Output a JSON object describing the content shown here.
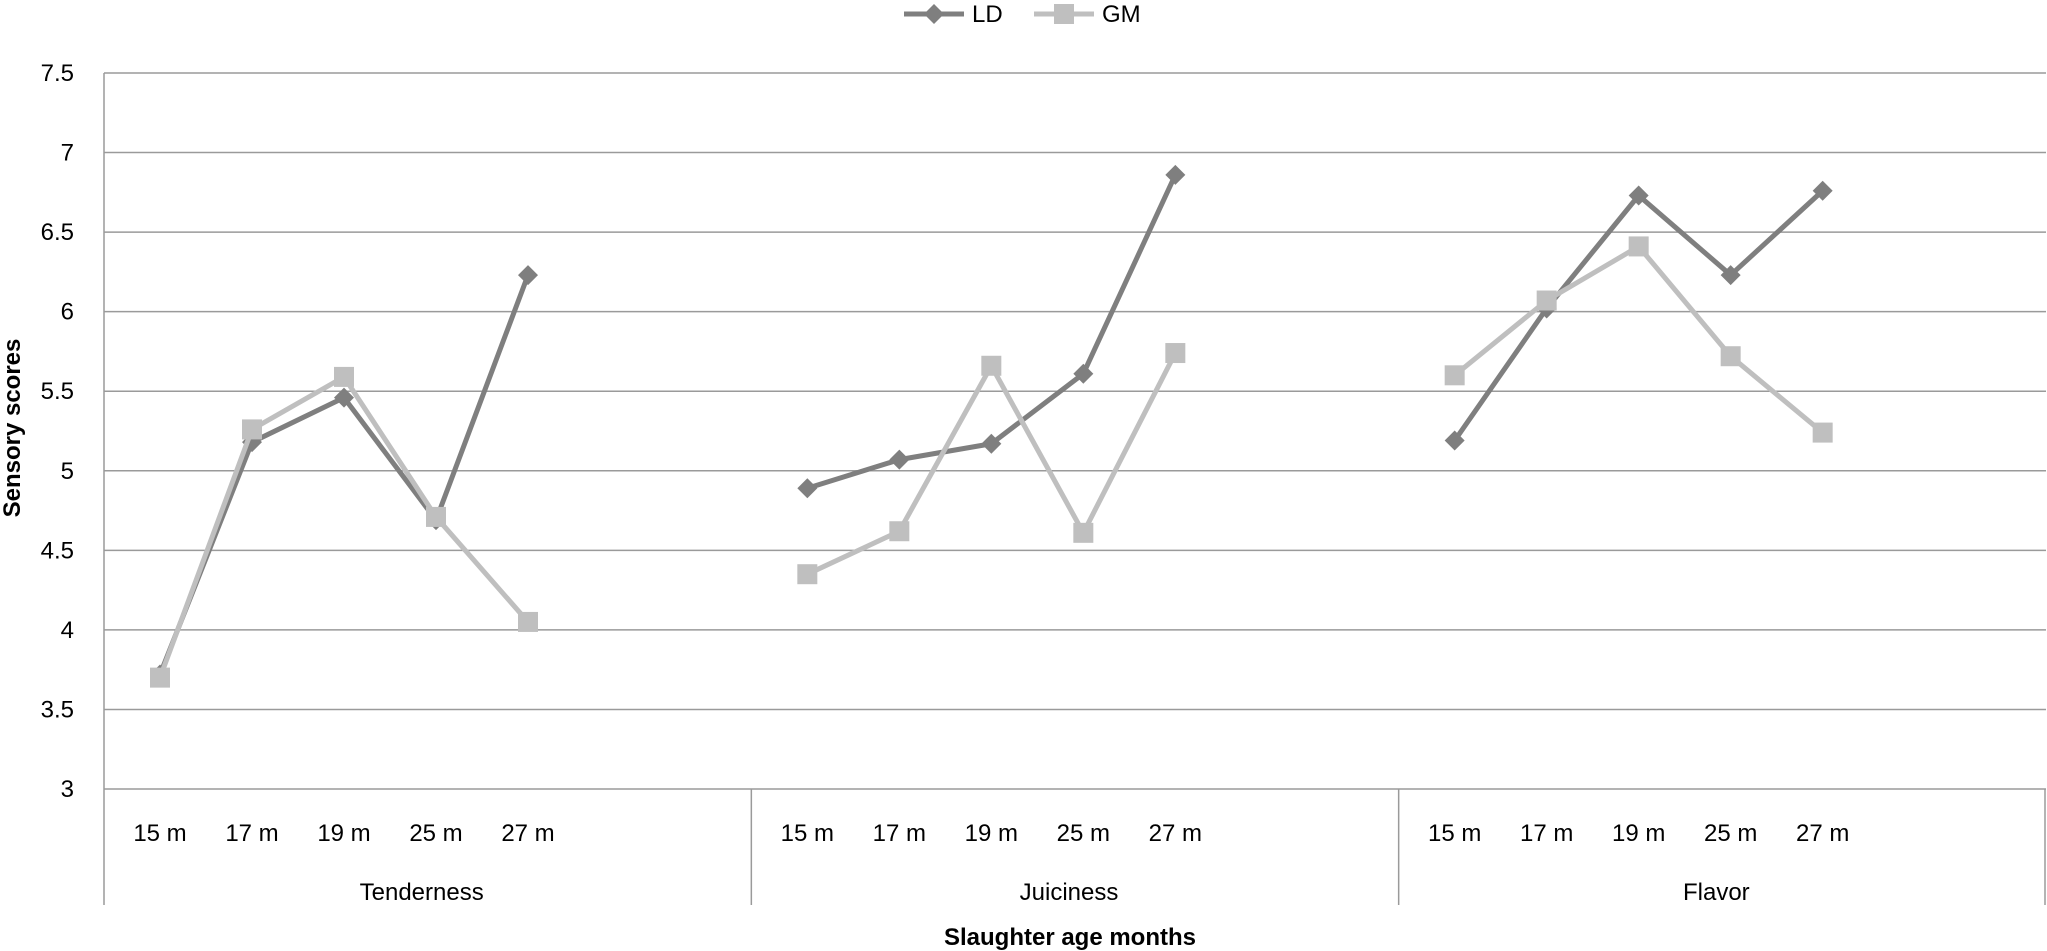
{
  "chart_data": {
    "type": "line",
    "xlabel": "Slaughter age months",
    "ylabel": "Sensory scores",
    "ylim": [
      3,
      7.5
    ],
    "yticks": [
      "3",
      "3.5",
      "4",
      "4.5",
      "5",
      "5.5",
      "6",
      "6.5",
      "7",
      "7.5"
    ],
    "grid": true,
    "legend_position": "top-center",
    "groups": [
      {
        "name": "Tenderness",
        "categories": [
          "15 m",
          "17 m",
          "19 m",
          "25 m",
          "27 m"
        ]
      },
      {
        "name": "Juiciness",
        "categories": [
          "15 m",
          "17 m",
          "19 m",
          "25 m",
          "27 m"
        ]
      },
      {
        "name": "Flavor",
        "categories": [
          "15 m",
          "17 m",
          "19 m",
          "25 m",
          "27 m"
        ]
      }
    ],
    "series": [
      {
        "name": "LD",
        "color": "#7f7f7f",
        "marker": "diamond",
        "values": [
          [
            3.72,
            5.18,
            5.46,
            4.69,
            6.23
          ],
          [
            4.89,
            5.07,
            5.17,
            5.61,
            6.86
          ],
          [
            5.19,
            6.02,
            6.73,
            6.23,
            6.76
          ]
        ]
      },
      {
        "name": "GM",
        "color": "#bfbfbf",
        "marker": "square",
        "values": [
          [
            3.7,
            5.26,
            5.59,
            4.71,
            4.05
          ],
          [
            4.35,
            4.62,
            5.66,
            4.61,
            5.74
          ],
          [
            5.6,
            6.07,
            6.41,
            5.72,
            5.24
          ]
        ]
      }
    ]
  }
}
